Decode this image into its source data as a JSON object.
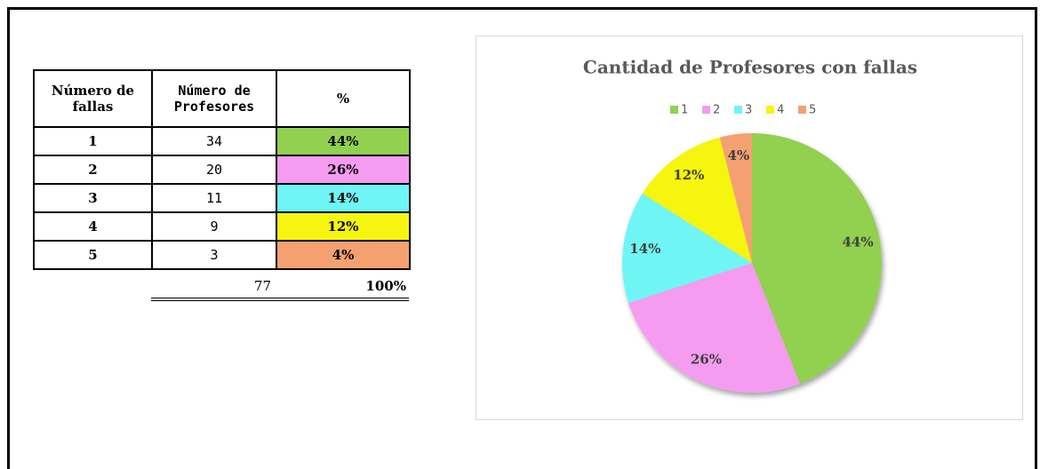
{
  "table": {
    "headers": [
      "Número de fallas",
      "Número de Profesores",
      "%"
    ],
    "rows": [
      [
        "1",
        34,
        "44%"
      ],
      [
        "2",
        20,
        "26%"
      ],
      [
        "3",
        11,
        "14%"
      ],
      [
        "4",
        9,
        "12%"
      ],
      [
        "5",
        3,
        "4%"
      ]
    ],
    "total": [
      77,
      "100%"
    ]
  },
  "chart_data": {
    "type": "pie",
    "title": "Cantidad de Profesores con fallas",
    "categories": [
      "1",
      "2",
      "3",
      "4",
      "5"
    ],
    "values": [
      44,
      26,
      14,
      12,
      4
    ],
    "value_labels": [
      "44%",
      "26%",
      "14%",
      "12%",
      "4%"
    ],
    "colors": [
      "#92d050",
      "#f59bf0",
      "#6ff5f5",
      "#f5f50f",
      "#f4a070"
    ],
    "legend": "top"
  }
}
